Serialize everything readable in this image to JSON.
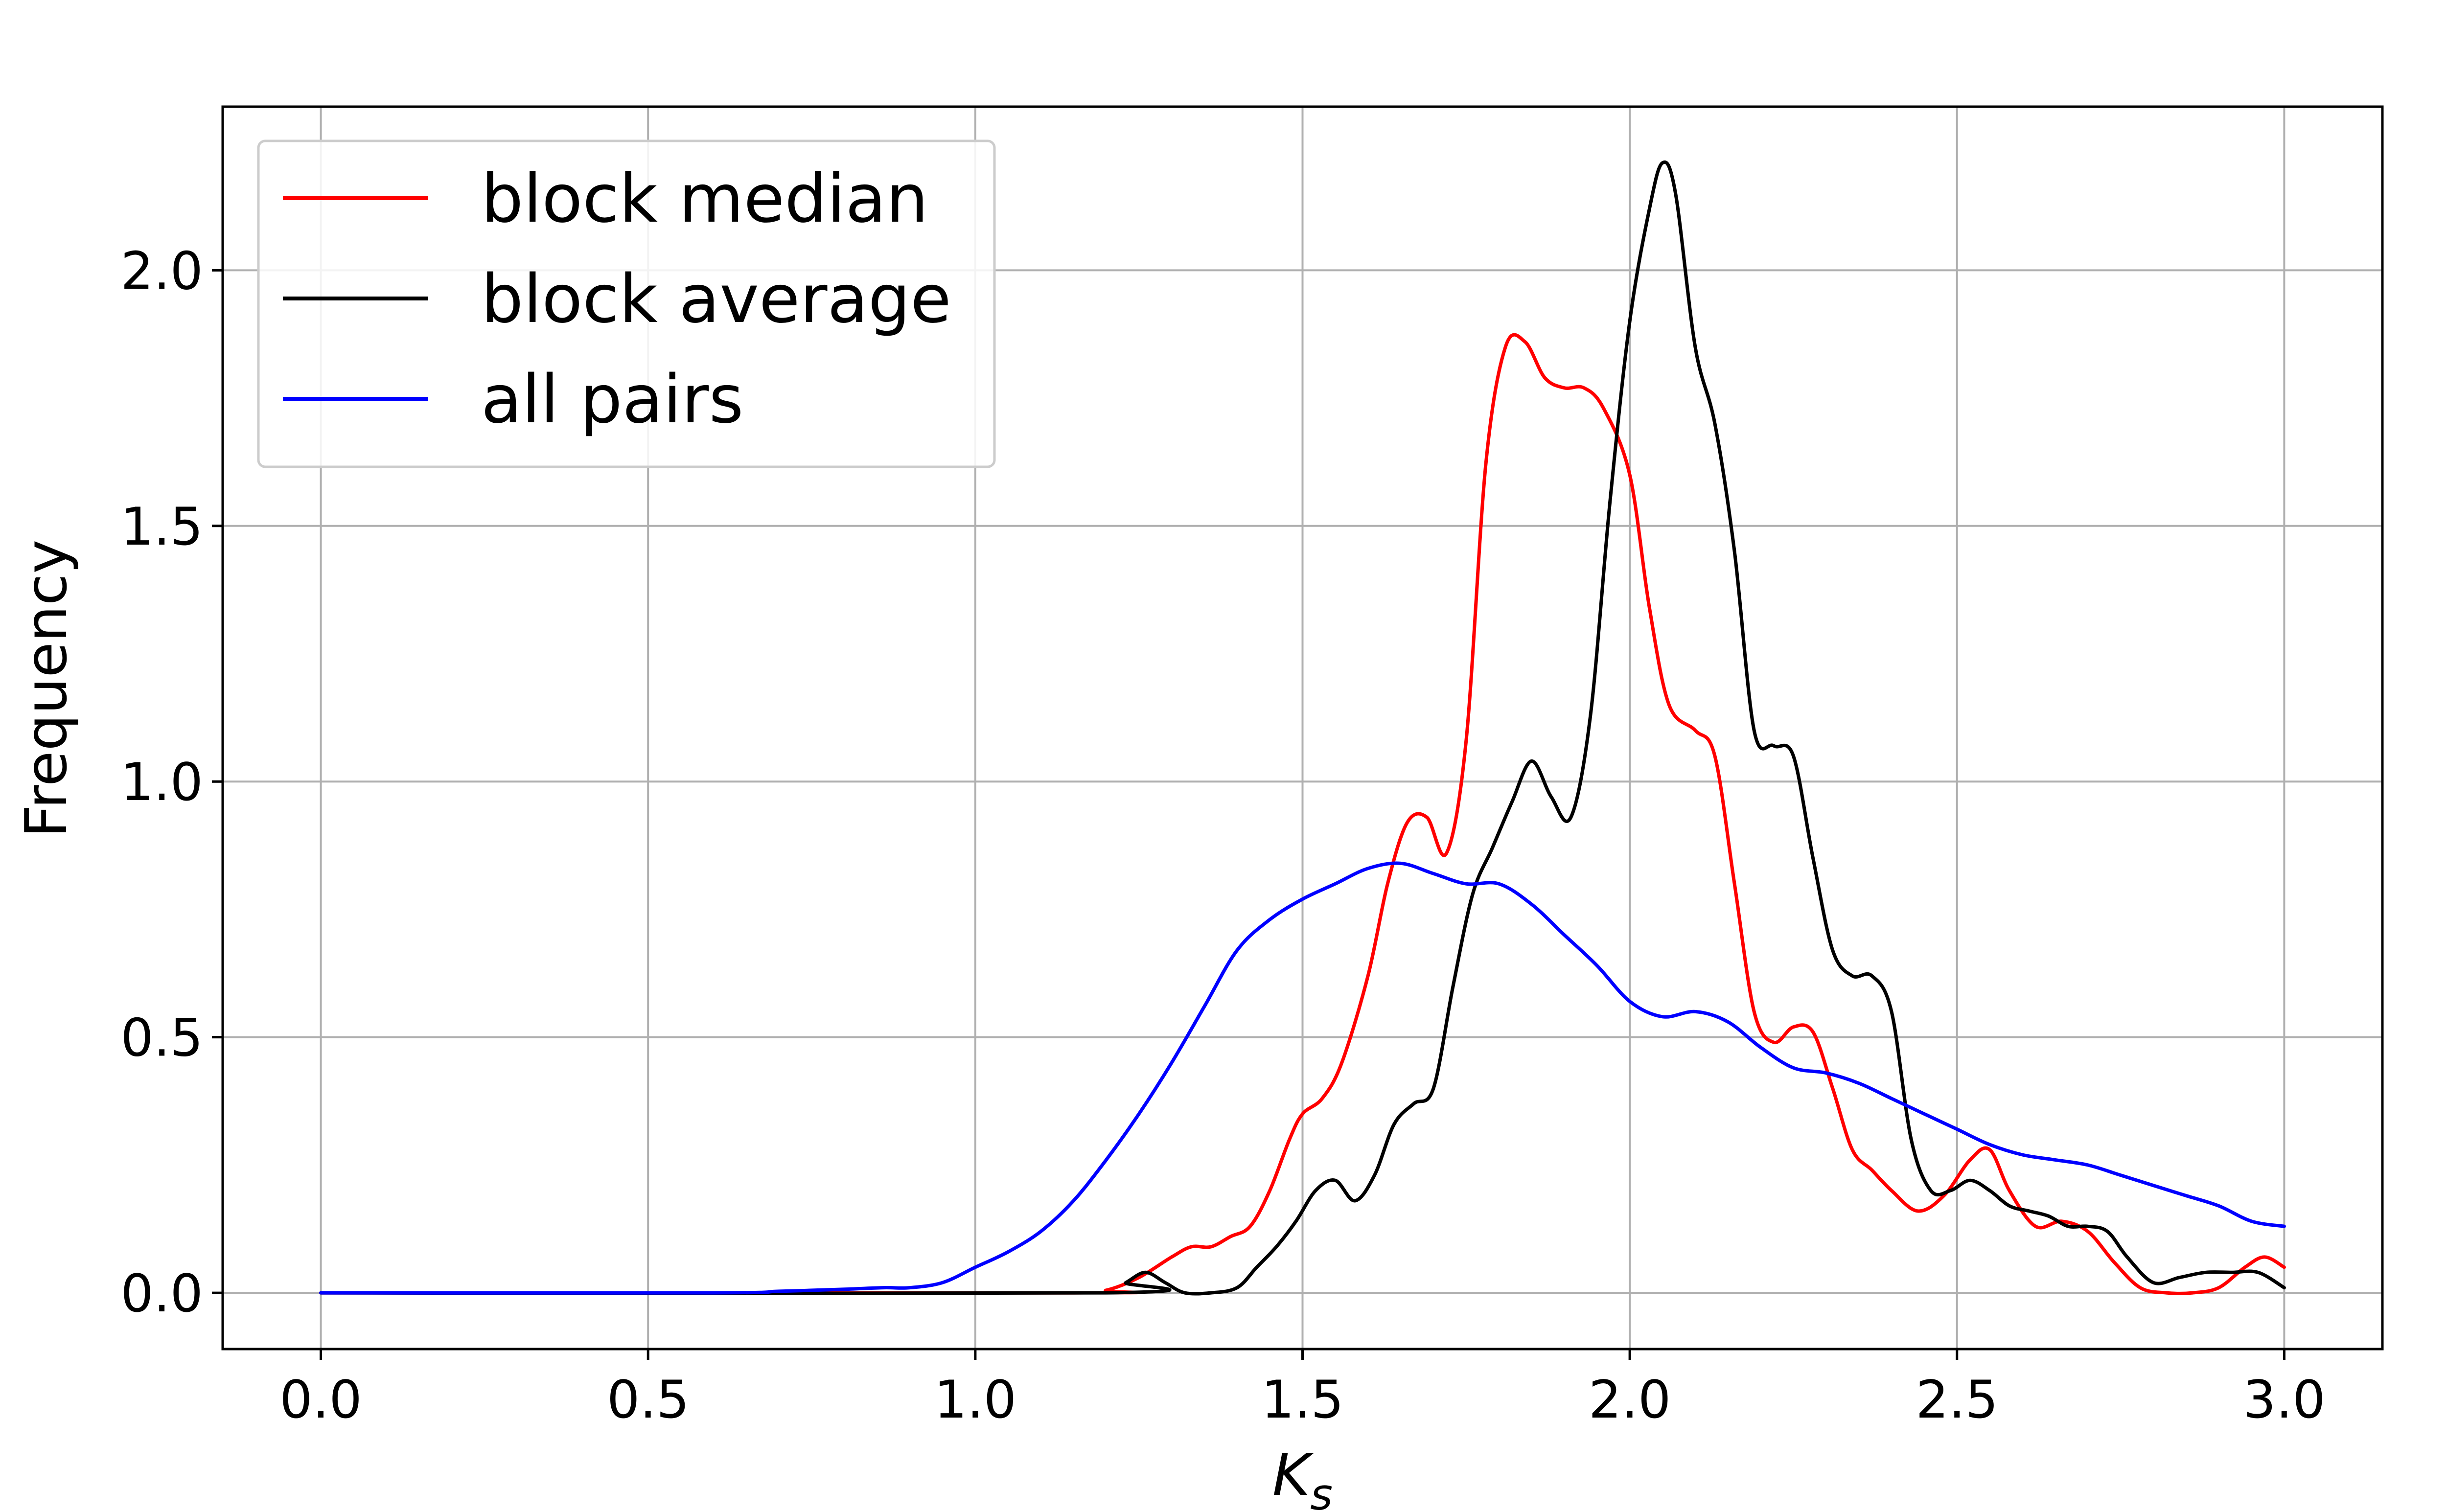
{
  "chart_data": {
    "type": "line",
    "title": "",
    "xlabel_main": "K",
    "xlabel_sub": "s",
    "ylabel": "Frequency",
    "xlim": [
      -0.15,
      3.15
    ],
    "ylim": [
      -0.11,
      2.32
    ],
    "grid": true,
    "legend_position": "top-left",
    "x_ticks": [
      0.0,
      0.5,
      1.0,
      1.5,
      2.0,
      2.5,
      3.0
    ],
    "x_tick_labels": [
      "0.0",
      "0.5",
      "1.0",
      "1.5",
      "2.0",
      "2.5",
      "3.0"
    ],
    "y_ticks": [
      0.0,
      0.5,
      1.0,
      1.5,
      2.0
    ],
    "y_tick_labels": [
      "0.0",
      "0.5",
      "1.0",
      "1.5",
      "2.0"
    ],
    "series": [
      {
        "name": "block median",
        "color": "#ff0000",
        "x": [
          0.0,
          1.15,
          1.2,
          1.25,
          1.3,
          1.33,
          1.36,
          1.39,
          1.42,
          1.45,
          1.48,
          1.5,
          1.53,
          1.56,
          1.6,
          1.63,
          1.66,
          1.69,
          1.72,
          1.75,
          1.78,
          1.81,
          1.84,
          1.87,
          1.9,
          1.93,
          1.96,
          2.0,
          2.03,
          2.06,
          2.1,
          2.13,
          2.16,
          2.19,
          2.22,
          2.25,
          2.28,
          2.31,
          2.34,
          2.37,
          2.4,
          2.44,
          2.48,
          2.52,
          2.55,
          2.58,
          2.62,
          2.66,
          2.7,
          2.74,
          2.78,
          2.82,
          2.86,
          2.9,
          2.94,
          2.97,
          3.0
        ],
        "values": [
          0.0,
          0.0,
          0.005,
          0.03,
          0.07,
          0.09,
          0.09,
          0.11,
          0.13,
          0.2,
          0.3,
          0.35,
          0.38,
          0.45,
          0.62,
          0.8,
          0.92,
          0.93,
          0.86,
          1.08,
          1.62,
          1.85,
          1.86,
          1.79,
          1.77,
          1.77,
          1.73,
          1.6,
          1.34,
          1.15,
          1.1,
          1.05,
          0.8,
          0.55,
          0.49,
          0.52,
          0.51,
          0.4,
          0.28,
          0.24,
          0.2,
          0.16,
          0.19,
          0.26,
          0.28,
          0.2,
          0.13,
          0.14,
          0.12,
          0.06,
          0.01,
          0.0,
          0.0,
          0.01,
          0.05,
          0.07,
          0.05
        ]
      },
      {
        "name": "block average",
        "color": "#000000",
        "x": [
          0.0,
          1.2,
          1.23,
          1.26,
          1.29,
          1.32,
          1.36,
          1.4,
          1.43,
          1.46,
          1.49,
          1.52,
          1.55,
          1.58,
          1.61,
          1.64,
          1.67,
          1.7,
          1.73,
          1.76,
          1.79,
          1.82,
          1.85,
          1.88,
          1.91,
          1.94,
          1.97,
          2.0,
          2.03,
          2.05,
          2.07,
          2.1,
          2.13,
          2.16,
          2.19,
          2.22,
          2.25,
          2.28,
          2.31,
          2.34,
          2.37,
          2.4,
          2.43,
          2.46,
          2.49,
          2.52,
          2.55,
          2.58,
          2.61,
          2.64,
          2.67,
          2.7,
          2.73,
          2.76,
          2.8,
          2.84,
          2.88,
          2.92,
          2.96,
          3.0
        ],
        "values": [
          0.0,
          0.0,
          0.02,
          0.04,
          0.02,
          0.0,
          0.0,
          0.01,
          0.05,
          0.09,
          0.14,
          0.2,
          0.22,
          0.18,
          0.23,
          0.33,
          0.37,
          0.4,
          0.6,
          0.78,
          0.87,
          0.96,
          1.04,
          0.97,
          0.93,
          1.13,
          1.55,
          1.9,
          2.12,
          2.21,
          2.15,
          1.85,
          1.7,
          1.45,
          1.1,
          1.07,
          1.05,
          0.85,
          0.67,
          0.62,
          0.62,
          0.55,
          0.3,
          0.2,
          0.2,
          0.22,
          0.2,
          0.17,
          0.16,
          0.15,
          0.13,
          0.13,
          0.12,
          0.07,
          0.02,
          0.03,
          0.04,
          0.04,
          0.04,
          0.01
        ]
      },
      {
        "name": "all pairs",
        "color": "#0000ff",
        "x": [
          0.0,
          0.6,
          0.7,
          0.8,
          0.86,
          0.9,
          0.95,
          1.0,
          1.05,
          1.1,
          1.15,
          1.2,
          1.25,
          1.3,
          1.35,
          1.4,
          1.45,
          1.5,
          1.55,
          1.6,
          1.65,
          1.7,
          1.75,
          1.8,
          1.85,
          1.9,
          1.95,
          2.0,
          2.05,
          2.1,
          2.15,
          2.2,
          2.25,
          2.3,
          2.35,
          2.4,
          2.45,
          2.5,
          2.55,
          2.6,
          2.65,
          2.7,
          2.75,
          2.8,
          2.85,
          2.9,
          2.95,
          3.0
        ],
        "values": [
          0.0,
          0.0,
          0.003,
          0.007,
          0.01,
          0.01,
          0.02,
          0.05,
          0.08,
          0.12,
          0.18,
          0.26,
          0.35,
          0.45,
          0.56,
          0.67,
          0.73,
          0.77,
          0.8,
          0.83,
          0.84,
          0.82,
          0.8,
          0.8,
          0.76,
          0.7,
          0.64,
          0.57,
          0.54,
          0.55,
          0.53,
          0.48,
          0.44,
          0.43,
          0.41,
          0.38,
          0.35,
          0.32,
          0.29,
          0.27,
          0.26,
          0.25,
          0.23,
          0.21,
          0.19,
          0.17,
          0.14,
          0.13
        ]
      }
    ]
  }
}
